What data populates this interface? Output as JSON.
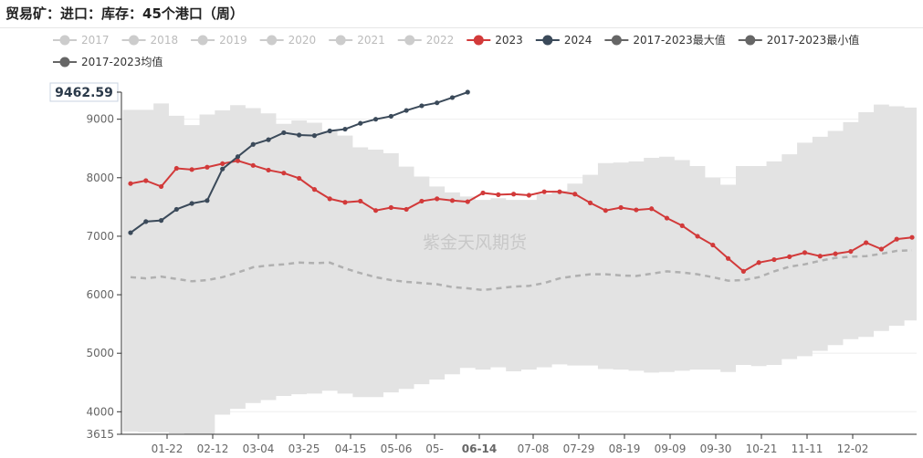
{
  "page_title": "贸易矿：进口：库存：45个港口（周）",
  "watermark": "紫金天风期货",
  "colors": {
    "y2023": "#d23a3a",
    "y2024": "#3b4a5a",
    "band": "#e3e3e3",
    "avg": "#b0b0b0",
    "legend_off": "#cccccc",
    "legend_text": "#333333",
    "legend_text_off": "#bbbbbb"
  },
  "legend": [
    {
      "label": "2017",
      "active": false,
      "color": "#cccccc"
    },
    {
      "label": "2018",
      "active": false,
      "color": "#cccccc"
    },
    {
      "label": "2019",
      "active": false,
      "color": "#cccccc"
    },
    {
      "label": "2020",
      "active": false,
      "color": "#cccccc"
    },
    {
      "label": "2021",
      "active": false,
      "color": "#cccccc"
    },
    {
      "label": "2022",
      "active": false,
      "color": "#cccccc"
    },
    {
      "label": "2023",
      "active": true,
      "color": "#d23a3a"
    },
    {
      "label": "2024",
      "active": true,
      "color": "#3b4a5a"
    },
    {
      "label": "2017-2023最大值",
      "active": true,
      "color": "#666666"
    },
    {
      "label": "2017-2023最小值",
      "active": true,
      "color": "#666666"
    },
    {
      "label": "2017-2023均值",
      "active": true,
      "color": "#666666"
    }
  ],
  "chart_data": {
    "type": "line",
    "title": "",
    "ylim": [
      3615,
      9462.59
    ],
    "y_ticks": [
      "9000",
      "8000",
      "7000",
      "6000",
      "5000",
      "4000"
    ],
    "y_min_label": "3615",
    "y_max_label": "9462.59",
    "grid": true,
    "legend_position": "top",
    "x_labels": [
      "01-22",
      "02-12",
      "03-04",
      "03-25",
      "04-15",
      "05-06",
      "05-",
      "06-14",
      "07-08",
      "07-29",
      "08-19",
      "09-09",
      "09-30",
      "10-21",
      "11-11",
      "12-02"
    ],
    "x_highlight": "06-14",
    "series": [
      {
        "name": "2023",
        "values": [
          7900,
          7950,
          7850,
          8160,
          8140,
          8180,
          8240,
          8290,
          8210,
          8130,
          8080,
          7990,
          7800,
          7640,
          7580,
          7600,
          7440,
          7490,
          7460,
          7600,
          7640,
          7610,
          7590,
          7740,
          7710,
          7720,
          7700,
          7760,
          7760,
          7720,
          7570,
          7440,
          7490,
          7450,
          7470,
          7310,
          7180,
          7000,
          6850,
          6620,
          6400,
          6550,
          6600,
          6650,
          6720,
          6660,
          6700,
          6740,
          6890,
          6780,
          6950,
          6980
        ]
      },
      {
        "name": "2024",
        "values": [
          7060,
          7250,
          7270,
          7460,
          7560,
          7610,
          8150,
          8360,
          8570,
          8650,
          8770,
          8730,
          8720,
          8800,
          8830,
          8930,
          9000,
          9050,
          9150,
          9230,
          9280,
          9370,
          9462.59
        ]
      },
      {
        "name": "2017-2023最大值",
        "values": [
          9160,
          9160,
          9270,
          9060,
          8900,
          9080,
          9150,
          9240,
          9190,
          9100,
          8920,
          8980,
          8940,
          8800,
          8720,
          8520,
          8480,
          8420,
          8190,
          8020,
          7850,
          7750,
          7680,
          7620,
          7650,
          7620,
          7620,
          7720,
          7780,
          7900,
          8050,
          8250,
          8260,
          8280,
          8340,
          8360,
          8300,
          8200,
          8000,
          7880,
          8200,
          8200,
          8280,
          8400,
          8600,
          8700,
          8800,
          8950,
          9120,
          9250,
          9220,
          9200
        ]
      },
      {
        "name": "2017-2023最小值",
        "values": [
          3660,
          3650,
          3650,
          3630,
          3620,
          3620,
          3950,
          4050,
          4150,
          4200,
          4270,
          4300,
          4310,
          4360,
          4310,
          4250,
          4250,
          4330,
          4390,
          4470,
          4550,
          4640,
          4750,
          4720,
          4760,
          4690,
          4720,
          4760,
          4810,
          4790,
          4790,
          4730,
          4720,
          4700,
          4670,
          4680,
          4700,
          4720,
          4720,
          4680,
          4800,
          4780,
          4800,
          4900,
          4950,
          5040,
          5140,
          5240,
          5280,
          5380,
          5470,
          5560
        ]
      },
      {
        "name": "2017-2023均值",
        "values": [
          6300,
          6280,
          6310,
          6270,
          6230,
          6250,
          6300,
          6380,
          6470,
          6500,
          6520,
          6550,
          6540,
          6550,
          6450,
          6370,
          6300,
          6250,
          6220,
          6200,
          6180,
          6130,
          6110,
          6080,
          6110,
          6140,
          6150,
          6200,
          6280,
          6320,
          6350,
          6350,
          6330,
          6320,
          6360,
          6400,
          6380,
          6350,
          6300,
          6240,
          6250,
          6300,
          6400,
          6480,
          6520,
          6580,
          6630,
          6650,
          6660,
          6700,
          6750,
          6760
        ]
      }
    ]
  }
}
